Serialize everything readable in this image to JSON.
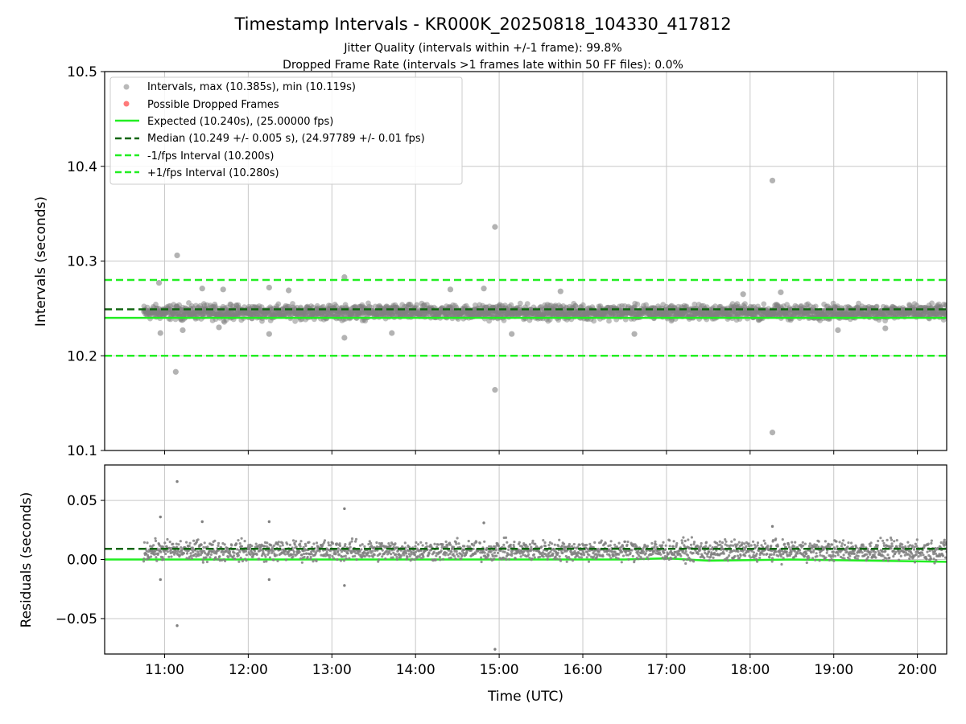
{
  "chart_data": {
    "type": "scatter",
    "title": "Timestamp Intervals - KR000K_20250818_104330_417812",
    "subtitle_1": "Jitter Quality (intervals within +/-1 frame): 99.8%",
    "subtitle_2": "Dropped Frame Rate (intervals >1 frames late within 50 FF files): 0.0%",
    "xlabel": "Time (UTC)",
    "xlim": [
      "10:17",
      "20:21"
    ],
    "xticks": [
      "11:00",
      "12:00",
      "13:00",
      "14:00",
      "15:00",
      "16:00",
      "17:00",
      "18:00",
      "19:00",
      "20:00"
    ],
    "grid": true,
    "legend_position": "upper-left",
    "colors": {
      "points": "#808080",
      "dropped": "#ff6b6b",
      "expected": "#22ee22",
      "median": "#116611",
      "bounds": "#22ee22"
    },
    "top_panel": {
      "ylabel": "Intervals (seconds)",
      "ylim": [
        10.1,
        10.5
      ],
      "yticks": [
        "10.1",
        "10.2",
        "10.3",
        "10.4",
        "10.5"
      ],
      "legend": [
        "Intervals, max (10.385s), min (10.119s)",
        "Possible Dropped Frames",
        "Expected (10.240s), (25.00000 fps)",
        "Median (10.249 +/- 0.005 s), (24.97789 +/- 0.01 fps)",
        "-1/fps Interval (10.200s)",
        "+1/fps Interval (10.280s)"
      ],
      "expected": 10.24,
      "median": 10.249,
      "minus_fps_interval": 10.2,
      "plus_fps_interval": 10.28,
      "band": {
        "x_start": "10:45",
        "x_end": "20:21",
        "y_low": 10.235,
        "y_high": 10.257
      },
      "outliers": [
        {
          "x": "10:56",
          "y": 10.277
        },
        {
          "x": "10:57",
          "y": 10.224
        },
        {
          "x": "11:08",
          "y": 10.183
        },
        {
          "x": "11:09",
          "y": 10.306
        },
        {
          "x": "11:13",
          "y": 10.227
        },
        {
          "x": "11:27",
          "y": 10.271
        },
        {
          "x": "11:39",
          "y": 10.23
        },
        {
          "x": "11:42",
          "y": 10.27
        },
        {
          "x": "12:15",
          "y": 10.272
        },
        {
          "x": "12:15",
          "y": 10.223
        },
        {
          "x": "12:29",
          "y": 10.269
        },
        {
          "x": "13:09",
          "y": 10.283
        },
        {
          "x": "13:09",
          "y": 10.219
        },
        {
          "x": "13:43",
          "y": 10.224
        },
        {
          "x": "14:25",
          "y": 10.27
        },
        {
          "x": "14:49",
          "y": 10.271
        },
        {
          "x": "14:57",
          "y": 10.336
        },
        {
          "x": "14:57",
          "y": 10.164
        },
        {
          "x": "15:09",
          "y": 10.223
        },
        {
          "x": "15:44",
          "y": 10.268
        },
        {
          "x": "16:37",
          "y": 10.223
        },
        {
          "x": "17:55",
          "y": 10.265
        },
        {
          "x": "18:16",
          "y": 10.385
        },
        {
          "x": "18:16",
          "y": 10.119
        },
        {
          "x": "18:22",
          "y": 10.267
        },
        {
          "x": "19:03",
          "y": 10.227
        },
        {
          "x": "19:37",
          "y": 10.229
        }
      ]
    },
    "bottom_panel": {
      "ylabel": "Residuals (seconds)",
      "ylim": [
        -0.08,
        0.08
      ],
      "yticks": [
        "0.05",
        "0.00",
        "−0.05"
      ],
      "median_residual": 0.009,
      "band": {
        "x_start": "10:45",
        "x_end": "20:21",
        "y_low": -0.005,
        "y_high": 0.02
      },
      "trend": [
        {
          "x": "10:17",
          "y": 0.0
        },
        {
          "x": "16:30",
          "y": 0.0
        },
        {
          "x": "17:00",
          "y": 0.001
        },
        {
          "x": "17:30",
          "y": -0.001
        },
        {
          "x": "18:30",
          "y": 0.0
        },
        {
          "x": "20:21",
          "y": -0.002
        }
      ],
      "outliers": [
        {
          "x": "10:57",
          "y": 0.036
        },
        {
          "x": "10:57",
          "y": -0.017
        },
        {
          "x": "11:09",
          "y": 0.066
        },
        {
          "x": "11:09",
          "y": -0.056
        },
        {
          "x": "11:27",
          "y": 0.032
        },
        {
          "x": "12:15",
          "y": 0.032
        },
        {
          "x": "12:15",
          "y": -0.017
        },
        {
          "x": "13:09",
          "y": 0.043
        },
        {
          "x": "13:09",
          "y": -0.022
        },
        {
          "x": "14:49",
          "y": 0.031
        },
        {
          "x": "14:57",
          "y": -0.076
        },
        {
          "x": "18:16",
          "y": 0.028
        }
      ]
    }
  }
}
